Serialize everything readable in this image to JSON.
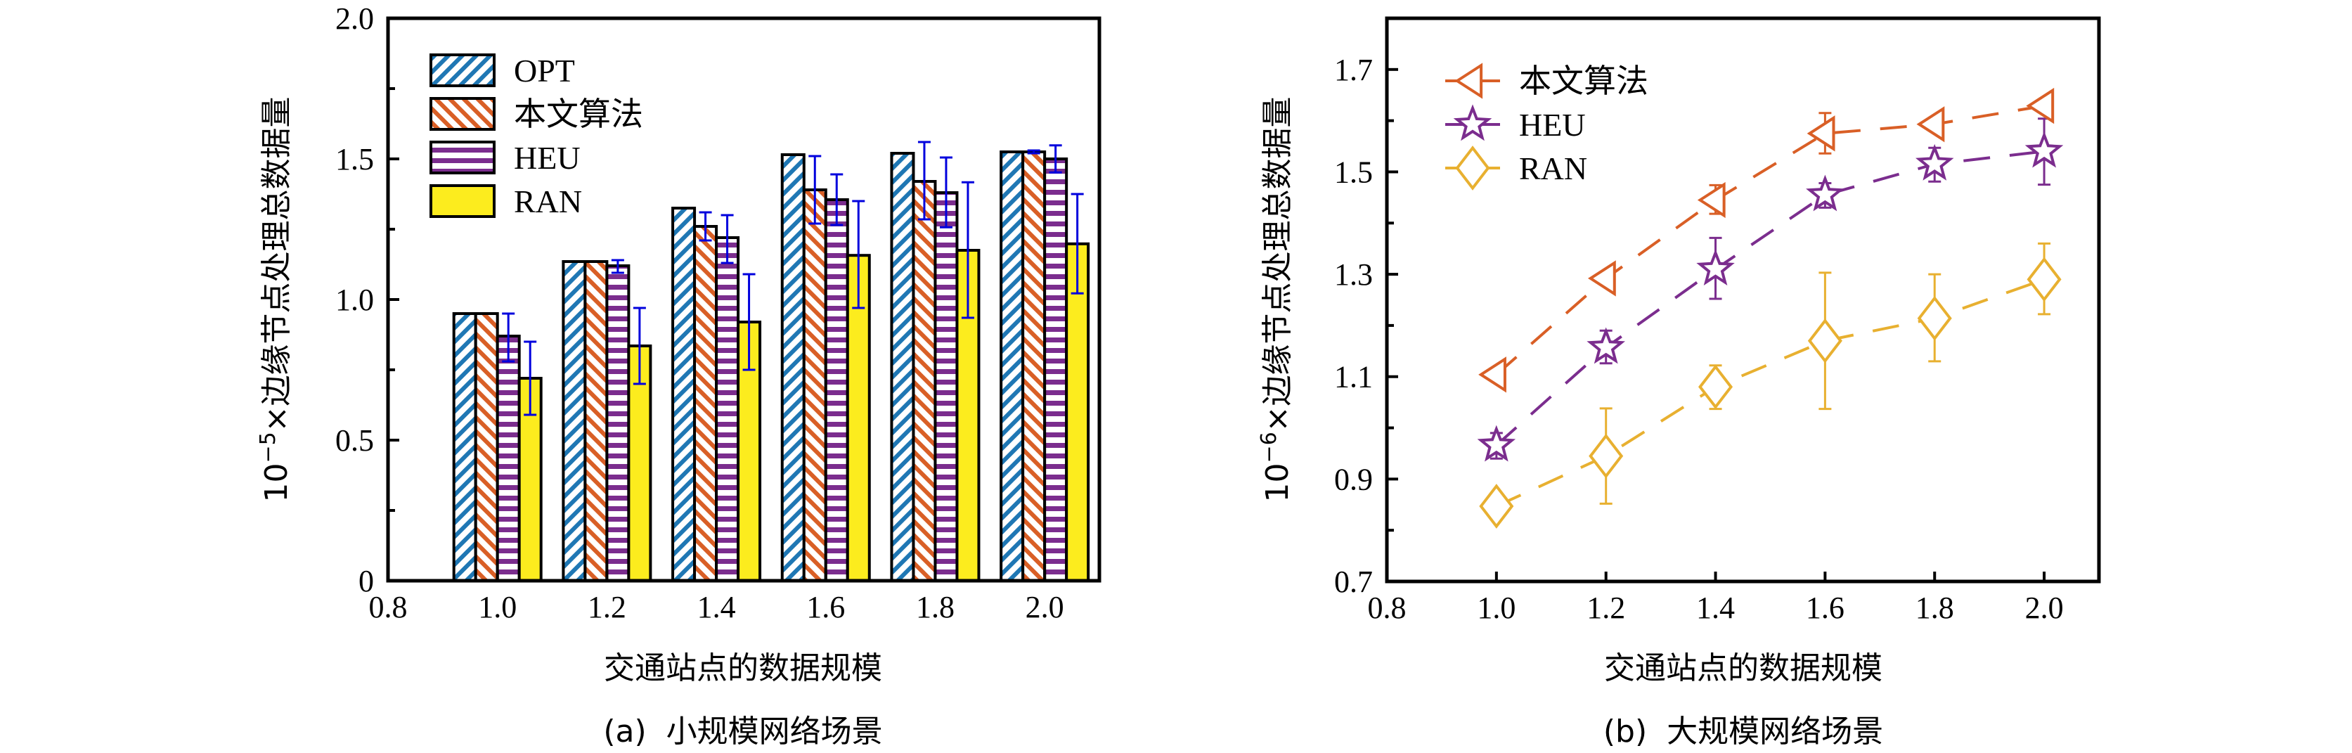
{
  "chart_data": [
    {
      "id": "a",
      "type": "bar",
      "caption": "(a)  小规模网络场景",
      "xlabel": "交通站点的数据规模",
      "ylabel_prefix": "10",
      "ylabel_exp": "−5",
      "ylabel_rest": "×边缘节点处理总数据量",
      "xlim": [
        0.8,
        2.1
      ],
      "ylim": [
        0,
        2.0
      ],
      "xticks": [
        0.8,
        1.0,
        1.2,
        1.4,
        1.6,
        1.8,
        2.0
      ],
      "xtick_labels": [
        "0.8",
        "1.0",
        "1.2",
        "1.4",
        "1.6",
        "1.8",
        "2.0"
      ],
      "yticks": [
        0,
        0.5,
        1.0,
        1.5,
        2.0
      ],
      "ytick_labels": [
        "0",
        "0.5",
        "1.0",
        "1.5",
        "2.0"
      ],
      "yminor_ticks": [
        0.25,
        0.75,
        1.25,
        1.75
      ],
      "categories": [
        1.0,
        1.2,
        1.4,
        1.6,
        1.8,
        2.0
      ],
      "legend_position": "top-left",
      "series": [
        {
          "name": "OPT",
          "pattern": "diag-up",
          "color": "#1f77b4",
          "values": [
            0.95,
            1.135,
            1.325,
            1.515,
            1.52,
            1.525
          ],
          "err_low": [
            null,
            null,
            null,
            null,
            null,
            null
          ],
          "err_high": [
            null,
            null,
            null,
            null,
            null,
            null
          ]
        },
        {
          "name": "本文算法",
          "pattern": "diag-down",
          "color": "#d95f26",
          "values": [
            0.95,
            1.135,
            1.26,
            1.39,
            1.42,
            1.525
          ],
          "err_low": [
            null,
            null,
            1.21,
            1.27,
            1.285,
            1.52
          ],
          "err_high": [
            null,
            null,
            1.31,
            1.51,
            1.56,
            1.53
          ]
        },
        {
          "name": "HEU",
          "pattern": "horizontal",
          "color": "#7b2d8e",
          "values": [
            0.87,
            1.12,
            1.22,
            1.355,
            1.38,
            1.5
          ],
          "err_low": [
            0.78,
            1.095,
            1.13,
            1.265,
            1.257,
            1.452
          ],
          "err_high": [
            0.95,
            1.14,
            1.3,
            1.445,
            1.505,
            1.548
          ]
        },
        {
          "name": "RAN",
          "pattern": "solid",
          "color": "#fcec1e",
          "values": [
            0.72,
            0.835,
            0.92,
            1.157,
            1.175,
            1.198
          ],
          "err_low": [
            0.59,
            0.7,
            0.75,
            0.97,
            0.935,
            1.022
          ],
          "err_high": [
            0.85,
            0.97,
            1.09,
            1.35,
            1.417,
            1.375
          ]
        }
      ],
      "errorbar_color": "#0000dd"
    },
    {
      "id": "b",
      "type": "line",
      "caption": "(b)  大规模网络场景",
      "xlabel": "交通站点的数据规模",
      "ylabel_prefix": "10",
      "ylabel_exp": "−6",
      "ylabel_rest": "×边缘节点处理总数据量",
      "xlim": [
        0.8,
        2.1
      ],
      "ylim": [
        0.7,
        1.8
      ],
      "xticks": [
        0.8,
        1.0,
        1.2,
        1.4,
        1.6,
        1.8,
        2.0
      ],
      "xtick_labels": [
        "0.8",
        "1.0",
        "1.2",
        "1.4",
        "1.6",
        "1.8",
        "2.0"
      ],
      "yticks": [
        0.7,
        0.9,
        1.1,
        1.3,
        1.5,
        1.7
      ],
      "ytick_labels": [
        "0.7",
        "0.9",
        "1.1",
        "1.3",
        "1.5",
        "1.7"
      ],
      "yminor_ticks": [
        0.8,
        1.0,
        1.2,
        1.4,
        1.6
      ],
      "x": [
        1.0,
        1.2,
        1.4,
        1.6,
        1.8,
        2.0
      ],
      "legend_position": "top-left",
      "series": [
        {
          "name": "本文算法",
          "marker": "left-triangle",
          "color": "#d95f26",
          "line": "dashed",
          "values": [
            1.104,
            1.292,
            1.445,
            1.575,
            1.593,
            1.629
          ],
          "err_low": [
            1.095,
            1.28,
            1.418,
            1.536,
            1.585,
            1.62
          ],
          "err_high": [
            1.112,
            1.3,
            1.474,
            1.615,
            1.6,
            1.638
          ]
        },
        {
          "name": "HEU",
          "marker": "star",
          "color": "#7b2d8e",
          "line": "dashed",
          "values": [
            0.966,
            1.157,
            1.31,
            1.455,
            1.515,
            1.54
          ],
          "err_low": [
            0.94,
            1.126,
            1.252,
            1.43,
            1.481,
            1.475
          ],
          "err_high": [
            0.99,
            1.19,
            1.371,
            1.478,
            1.547,
            1.604
          ]
        },
        {
          "name": "RAN",
          "marker": "diamond",
          "color": "#e8b030",
          "line": "dashed",
          "values": [
            0.847,
            0.945,
            1.08,
            1.17,
            1.214,
            1.29
          ],
          "err_low": [
            0.83,
            0.852,
            1.037,
            1.037,
            1.13,
            1.222
          ],
          "err_high": [
            0.865,
            1.038,
            1.122,
            1.303,
            1.3,
            1.36
          ]
        }
      ]
    }
  ]
}
